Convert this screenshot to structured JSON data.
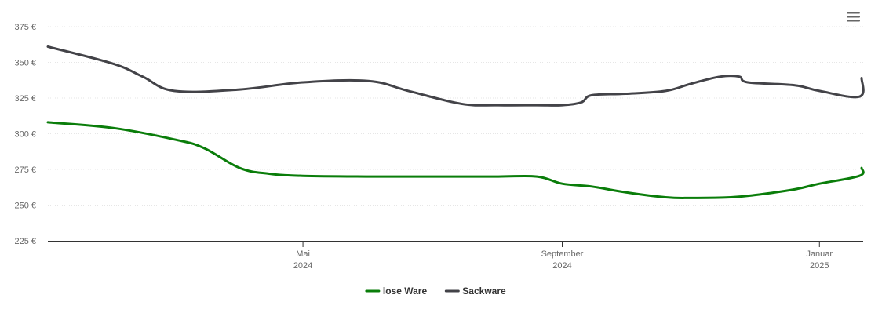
{
  "chart_data": {
    "type": "line",
    "title": "",
    "xlabel": "",
    "ylabel": "",
    "x_axis_type": "date",
    "xlim": [
      "2024-01-01",
      "2025-01-21"
    ],
    "ylim": [
      225,
      375
    ],
    "y_ticks": [
      225,
      250,
      275,
      300,
      325,
      350,
      375
    ],
    "y_tick_labels": [
      "225 €",
      "250 €",
      "275 €",
      "300 €",
      "325 €",
      "350 €",
      "375 €"
    ],
    "x_ticks": [
      {
        "date": "2024-05-01",
        "line1": "Mai",
        "line2": "2024"
      },
      {
        "date": "2024-09-01",
        "line1": "September",
        "line2": "2024"
      },
      {
        "date": "2025-01-01",
        "line1": "Januar",
        "line2": "2025"
      }
    ],
    "grid": true,
    "legend_position": "bottom-center",
    "series": [
      {
        "name": "lose Ware",
        "color": "#0a7d0a",
        "points": [
          {
            "x": "2024-01-01",
            "y": 308
          },
          {
            "x": "2024-02-01",
            "y": 304
          },
          {
            "x": "2024-03-01",
            "y": 296
          },
          {
            "x": "2024-03-15",
            "y": 290
          },
          {
            "x": "2024-04-01",
            "y": 276
          },
          {
            "x": "2024-04-15",
            "y": 272
          },
          {
            "x": "2024-05-01",
            "y": 270.5
          },
          {
            "x": "2024-06-01",
            "y": 270
          },
          {
            "x": "2024-07-01",
            "y": 270
          },
          {
            "x": "2024-08-01",
            "y": 270
          },
          {
            "x": "2024-08-20",
            "y": 270
          },
          {
            "x": "2024-09-01",
            "y": 265
          },
          {
            "x": "2024-09-15",
            "y": 263
          },
          {
            "x": "2024-10-01",
            "y": 259
          },
          {
            "x": "2024-10-20",
            "y": 255.5
          },
          {
            "x": "2024-11-01",
            "y": 255
          },
          {
            "x": "2024-11-20",
            "y": 255.5
          },
          {
            "x": "2024-12-01",
            "y": 257
          },
          {
            "x": "2024-12-20",
            "y": 261
          },
          {
            "x": "2025-01-01",
            "y": 265
          },
          {
            "x": "2025-01-20",
            "y": 270.5
          },
          {
            "x": "2025-01-21",
            "y": 276
          }
        ]
      },
      {
        "name": "Sackware",
        "color": "#434348",
        "points": [
          {
            "x": "2024-01-01",
            "y": 361
          },
          {
            "x": "2024-02-01",
            "y": 349
          },
          {
            "x": "2024-02-15",
            "y": 340
          },
          {
            "x": "2024-03-01",
            "y": 330
          },
          {
            "x": "2024-04-01",
            "y": 331
          },
          {
            "x": "2024-05-01",
            "y": 336
          },
          {
            "x": "2024-06-01",
            "y": 337
          },
          {
            "x": "2024-06-20",
            "y": 330
          },
          {
            "x": "2024-07-15",
            "y": 321
          },
          {
            "x": "2024-08-01",
            "y": 320
          },
          {
            "x": "2024-08-20",
            "y": 320
          },
          {
            "x": "2024-09-01",
            "y": 320
          },
          {
            "x": "2024-09-10",
            "y": 322
          },
          {
            "x": "2024-09-15",
            "y": 327
          },
          {
            "x": "2024-10-01",
            "y": 328
          },
          {
            "x": "2024-10-20",
            "y": 330
          },
          {
            "x": "2024-11-01",
            "y": 335
          },
          {
            "x": "2024-11-15",
            "y": 340
          },
          {
            "x": "2024-11-24",
            "y": 340
          },
          {
            "x": "2024-11-28",
            "y": 336
          },
          {
            "x": "2024-12-20",
            "y": 334
          },
          {
            "x": "2025-01-01",
            "y": 330
          },
          {
            "x": "2025-01-20",
            "y": 326
          },
          {
            "x": "2025-01-21",
            "y": 339
          }
        ]
      }
    ]
  },
  "menu": {
    "icon": "hamburger-menu-icon"
  }
}
